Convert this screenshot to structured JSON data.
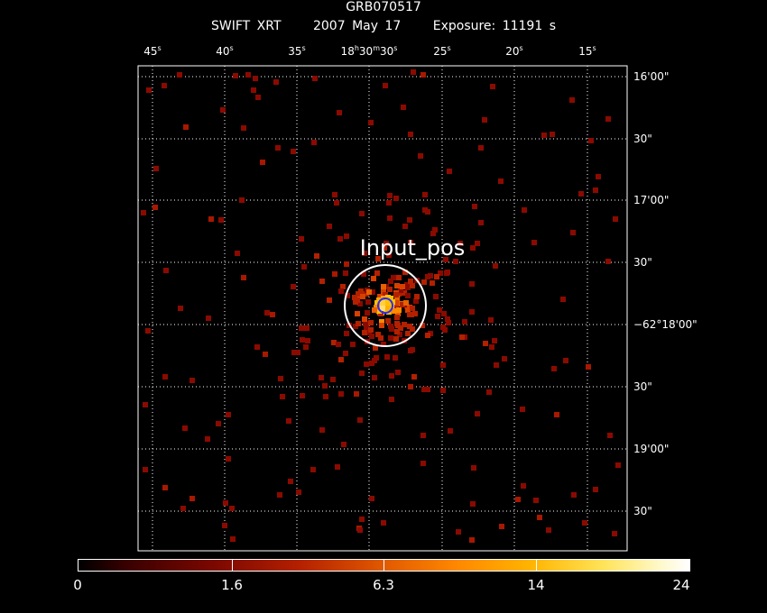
{
  "header": {
    "object": "GRB070517",
    "instrument": "SWIFT XRT",
    "date": "2007 May 17",
    "exposure": "Exposure: 11191 s"
  },
  "ra_ticks": [
    {
      "label": "45",
      "unit": "s"
    },
    {
      "label": "40",
      "unit": "s"
    },
    {
      "label": "35",
      "unit": "s"
    },
    {
      "label": "18h30m30",
      "unit": "s",
      "prefix": "18",
      "h": "h",
      "mid": "30",
      "m": "m",
      "sec": "30"
    },
    {
      "label": "25",
      "unit": "s"
    },
    {
      "label": "20",
      "unit": "s"
    },
    {
      "label": "15",
      "unit": "s"
    }
  ],
  "dec_ticks": [
    "16'00\"",
    "30\"",
    "17'00\"",
    "30\"",
    "−62°18'00\"",
    "30\"",
    "19'00\"",
    "30\""
  ],
  "annotation": "Input_pos",
  "colorbar": {
    "ticks": [
      "0",
      "1.6",
      "6.3",
      "14",
      "24"
    ]
  },
  "colors": {
    "background": "#000000",
    "grid": "#ffffff",
    "circle_outer": "#ffffff",
    "circle_inner": "#2a2aff",
    "pixel_low": "#8b0a00"
  }
}
